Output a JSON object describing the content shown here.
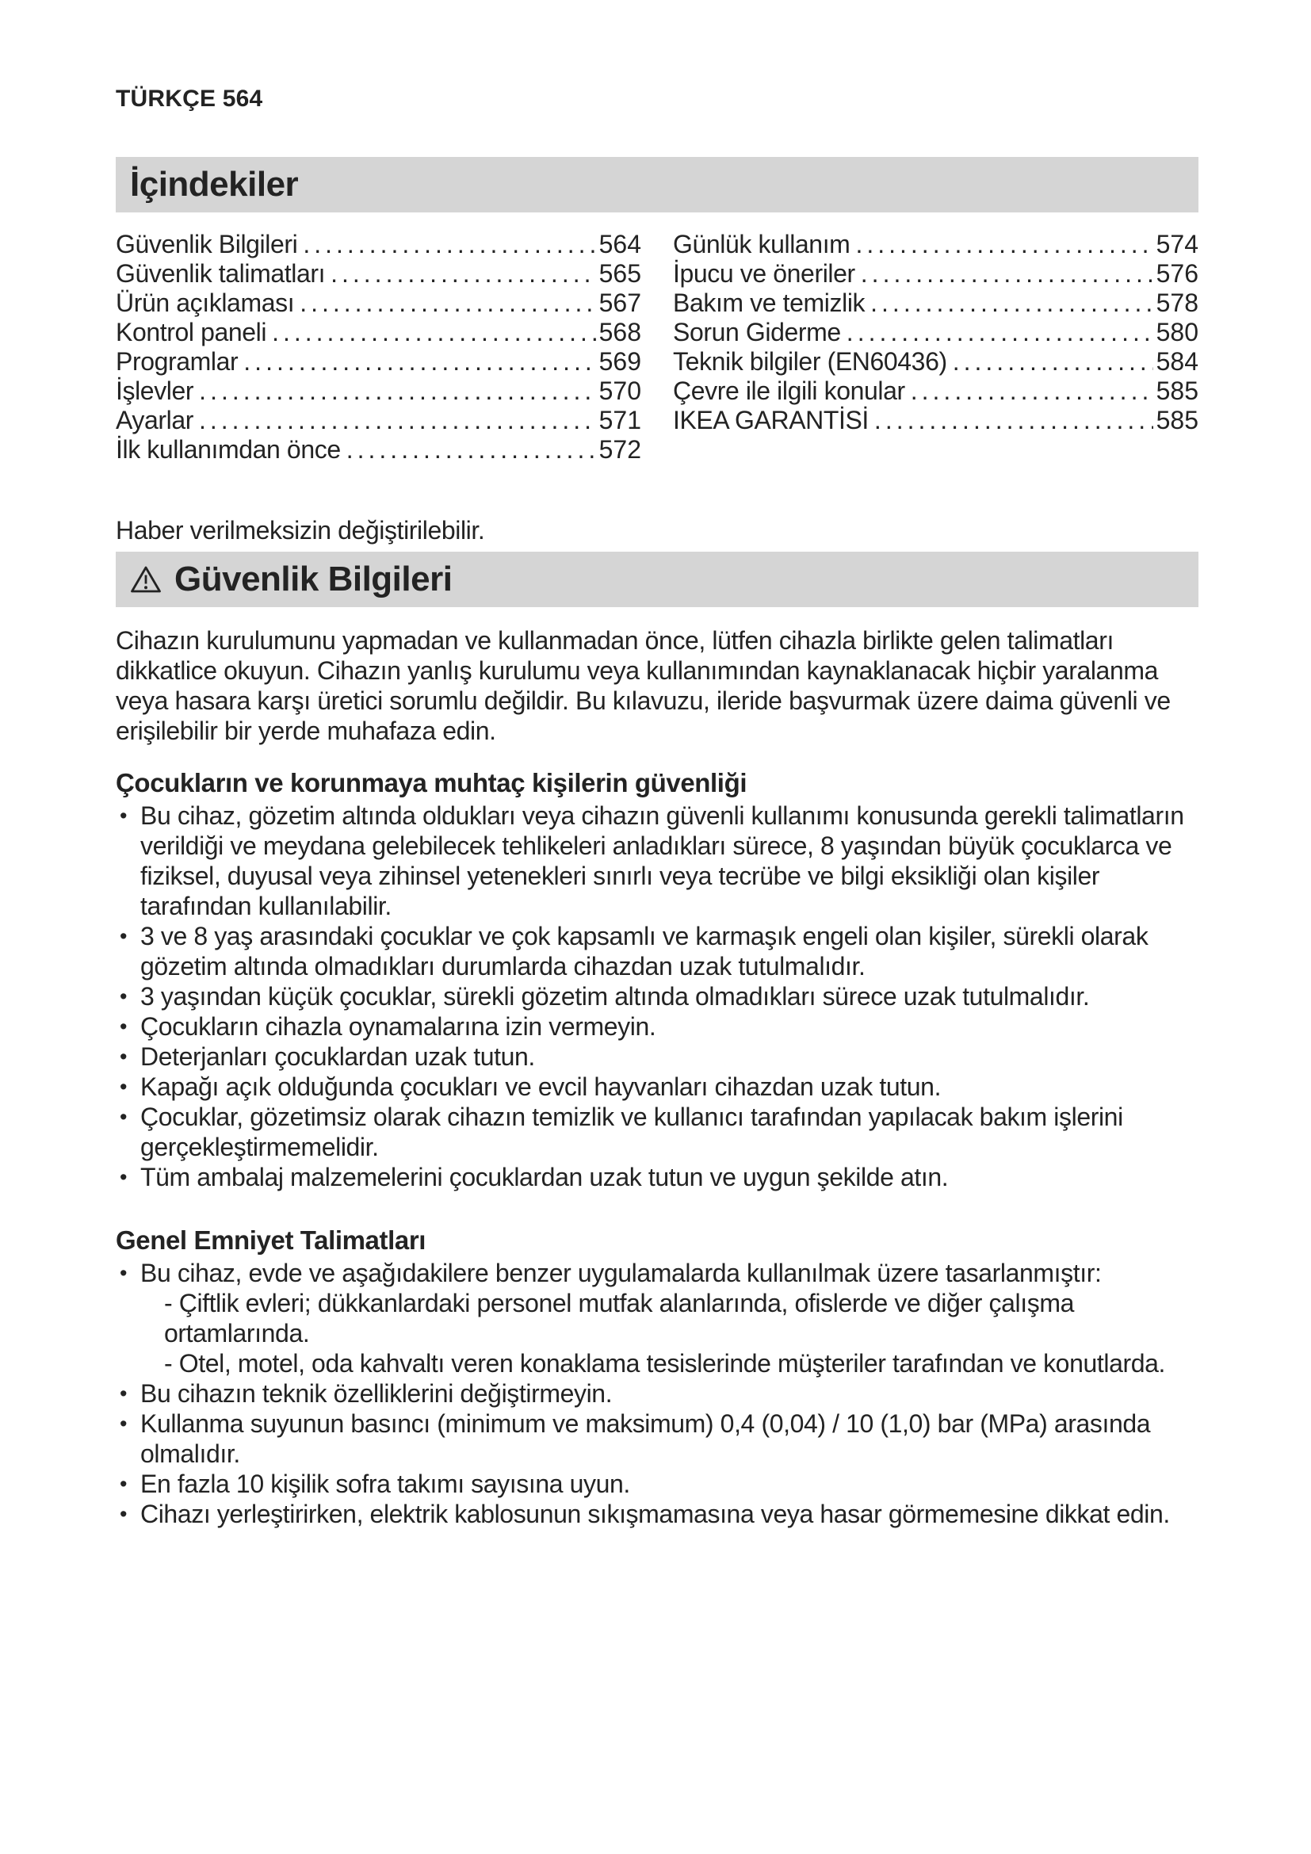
{
  "colors": {
    "text": "#232323",
    "bar_background": "#d5d5d5"
  },
  "page": {
    "language_label": "TÜRKÇE",
    "page_number": "564"
  },
  "toc": {
    "title": "İçindekiler",
    "columns": [
      {
        "entries": [
          {
            "label": "Güvenlik Bilgileri",
            "page": "564"
          },
          {
            "label": "Güvenlik talimatları",
            "page": "565"
          },
          {
            "label": "Ürün açıklaması",
            "page": "567"
          },
          {
            "label": "Kontrol paneli",
            "page": "568"
          },
          {
            "label": "Programlar",
            "page": "569"
          },
          {
            "label": "İşlevler",
            "page": "570"
          },
          {
            "label": "Ayarlar",
            "page": "571"
          },
          {
            "label": "İlk kullanımdan önce",
            "page": "572"
          }
        ]
      },
      {
        "entries": [
          {
            "label": "Günlük kullanım",
            "page": "574"
          },
          {
            "label": "İpucu ve öneriler",
            "page": "576"
          },
          {
            "label": "Bakım ve temizlik",
            "page": "578"
          },
          {
            "label": "Sorun Giderme",
            "page": "580"
          },
          {
            "label": "Teknik bilgiler (EN60436)",
            "page": "584"
          },
          {
            "label": "Çevre ile ilgili konular",
            "page": "585"
          },
          {
            "label": "IKEA GARANTİSİ",
            "page": "585"
          }
        ]
      }
    ]
  },
  "notice": "Haber verilmeksizin değiştirilebilir.",
  "safety": {
    "title": "Güvenlik Bilgileri",
    "warning_icon": "warning-triangle",
    "intro": "Cihazın kurulumunu yapmadan ve kullanmadan önce, lütfen cihazla birlikte gelen talimatları dikkatlice okuyun. Cihazın yanlış kurulumu veya kullanımından kaynaklanacak hiçbir yaralanma veya hasara karşı üretici sorumlu değildir. Bu kılavuzu, ileride başvurmak üzere daima güvenli ve erişilebilir bir yerde muhafaza edin.",
    "sections": [
      {
        "heading": "Çocukların ve korunmaya muhtaç kişilerin güvenliği",
        "bullets": [
          {
            "text": "Bu cihaz, gözetim altında oldukları veya cihazın güvenli kullanımı konusunda gerekli talimatların verildiği ve meydana gelebilecek tehlikeleri anladıkları sürece, 8 yaşından büyük çocuklarca ve fiziksel, duyusal veya zihinsel yetenekleri sınırlı veya tecrübe ve bilgi eksikliği olan kişiler tarafından kullanılabilir."
          },
          {
            "text": "3 ve 8 yaş arasındaki çocuklar ve çok kapsamlı ve karmaşık engeli olan kişiler, sürekli olarak gözetim altında olmadıkları durumlarda cihazdan uzak tutulmalıdır."
          },
          {
            "text": "3 yaşından küçük çocuklar, sürekli gözetim altında olmadıkları sürece uzak tutulmalıdır."
          },
          {
            "text": "Çocukların cihazla oynamalarına izin vermeyin."
          },
          {
            "text": "Deterjanları çocuklardan uzak tutun."
          },
          {
            "text": "Kapağı açık olduğunda çocukları ve evcil hayvanları cihazdan uzak tutun."
          },
          {
            "text": "Çocuklar, gözetimsiz olarak cihazın temizlik ve kullanıcı tarafından yapılacak bakım işlerini gerçekleştirmemelidir."
          },
          {
            "text": "Tüm ambalaj malzemelerini çocuklardan uzak tutun ve uygun şekilde atın."
          }
        ]
      },
      {
        "heading": "Genel Emniyet Talimatları",
        "bullets": [
          {
            "text": "Bu cihaz, evde ve aşağıdakilere benzer uygulamalarda kullanılmak üzere tasarlanmıştır:",
            "subitems": [
              "- Çiftlik evleri; dükkanlardaki personel mutfak alanlarında, ofislerde ve diğer çalışma ortamlarında.",
              "- Otel, motel, oda kahvaltı veren konaklama tesislerinde müşteriler tarafından ve konutlarda."
            ]
          },
          {
            "text": "Bu cihazın teknik özelliklerini değiştirmeyin."
          },
          {
            "text": "Kullanma suyunun basıncı (minimum ve maksimum) 0,4 (0,04) / 10 (1,0) bar (MPa) arasında olmalıdır."
          },
          {
            "text": "En fazla 10 kişilik sofra takımı sayısına uyun."
          },
          {
            "text": "Cihazı yerleştirirken, elektrik kablosunun sıkışmamasına veya hasar görmemesine dikkat edin."
          }
        ]
      }
    ]
  }
}
